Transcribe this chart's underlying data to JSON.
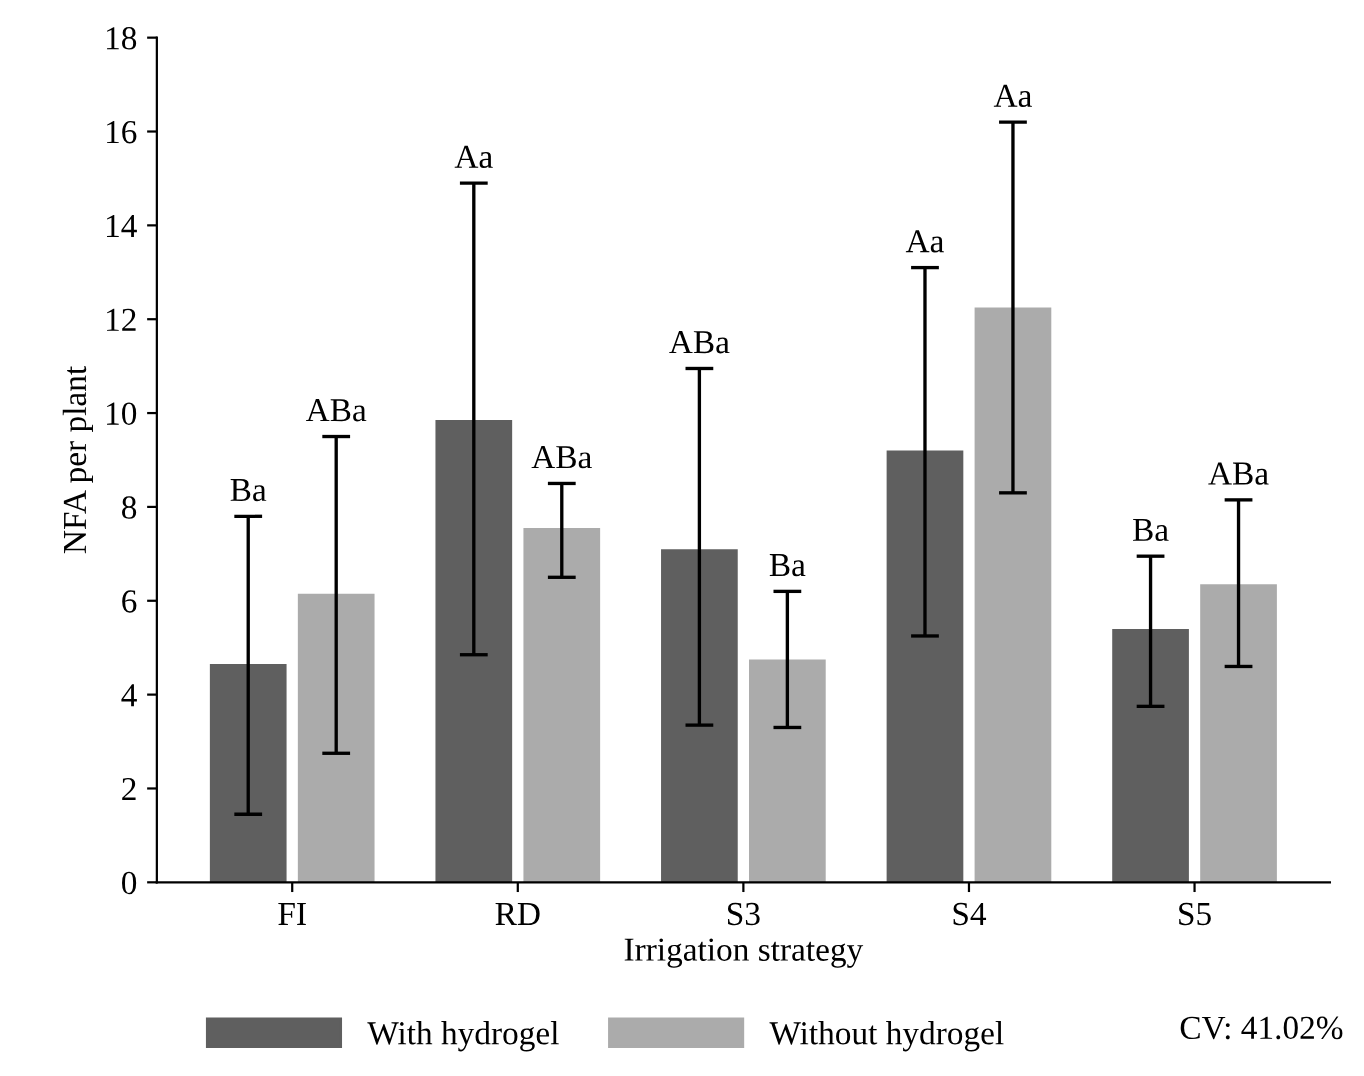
{
  "chart_data": {
    "type": "bar",
    "xlabel": "Irrigation strategy",
    "ylabel": "NFA per plant",
    "categories": [
      "FI",
      "RD",
      "S3",
      "S4",
      "S5"
    ],
    "series": [
      {
        "name": "With hydrogel",
        "color": "#5f5f5f",
        "values": [
          4.65,
          9.85,
          7.1,
          9.2,
          5.4
        ],
        "errors": [
          [
            1.45,
            7.8
          ],
          [
            4.85,
            14.9
          ],
          [
            3.35,
            10.95
          ],
          [
            5.25,
            13.1
          ],
          [
            3.75,
            6.95
          ]
        ]
      },
      {
        "name": "Without hydrogel",
        "color": "#ababab",
        "values": [
          6.15,
          7.55,
          4.75,
          12.25,
          6.35
        ],
        "errors": [
          [
            2.75,
            9.5
          ],
          [
            6.5,
            8.5
          ],
          [
            3.3,
            6.2
          ],
          [
            8.3,
            16.2
          ],
          [
            4.6,
            8.15
          ]
        ]
      }
    ],
    "ylim": [
      0,
      18
    ],
    "yticks": [
      0,
      2,
      4,
      6,
      8,
      10,
      12,
      14,
      16,
      18
    ],
    "grid": false,
    "legend": "bottom",
    "annotations": [
      "Ba",
      "ABa",
      "Aa",
      "ABa",
      "ABa",
      "Ba",
      "Aa",
      "Aa",
      "Ba",
      "ABa",
      "CV: 41.02%"
    ]
  }
}
